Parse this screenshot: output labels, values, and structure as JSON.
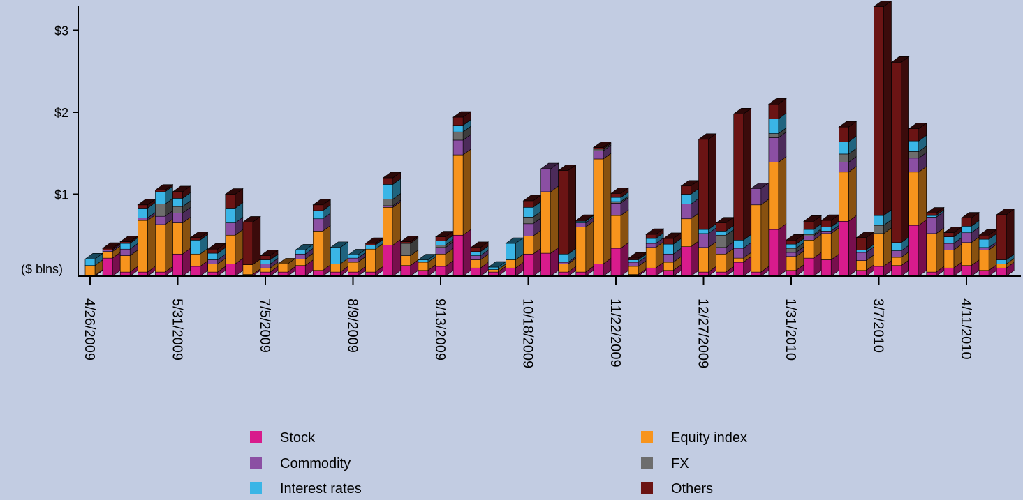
{
  "chart_data": {
    "type": "bar",
    "stacked": true,
    "three_d": true,
    "ylabel": "($ blns)",
    "ylim": [
      0,
      3.3
    ],
    "yticks": [
      {
        "value": 1,
        "label": "$1"
      },
      {
        "value": 2,
        "label": "$2"
      },
      {
        "value": 3,
        "label": "$3"
      }
    ],
    "xtick_labels": [
      {
        "index": 0,
        "label": "4/26/2009"
      },
      {
        "index": 5,
        "label": "5/31/2009"
      },
      {
        "index": 10,
        "label": "7/5/2009"
      },
      {
        "index": 15,
        "label": "8/9/2009"
      },
      {
        "index": 20,
        "label": "9/13/2009"
      },
      {
        "index": 25,
        "label": "10/18/2009"
      },
      {
        "index": 30,
        "label": "11/22/2009"
      },
      {
        "index": 35,
        "label": "12/27/2009"
      },
      {
        "index": 40,
        "label": "1/31/2010"
      },
      {
        "index": 45,
        "label": "3/7/2010"
      },
      {
        "index": 50,
        "label": "4/11/2010"
      }
    ],
    "grid": false,
    "legend_position": "bottom",
    "series": [
      {
        "name": "Stock",
        "color": "#d81b8c",
        "values": [
          0.01,
          0.22,
          0.05,
          0.05,
          0.05,
          0.27,
          0.12,
          0.05,
          0.15,
          0.02,
          0.05,
          0.05,
          0.13,
          0.07,
          0.05,
          0.05,
          0.05,
          0.38,
          0.13,
          0.07,
          0.12,
          0.5,
          0.1,
          0.05,
          0.1,
          0.27,
          0.28,
          0.05,
          0.05,
          0.15,
          0.34,
          0.02,
          0.1,
          0.07,
          0.36,
          0.05,
          0.05,
          0.17,
          0.05,
          0.57,
          0.07,
          0.22,
          0.2,
          0.67,
          0.07,
          0.12,
          0.13,
          0.62,
          0.05,
          0.1,
          0.13,
          0.07,
          0.1
        ]
      },
      {
        "name": "Equity index",
        "color": "#f7941d",
        "values": [
          0.12,
          0.08,
          0.2,
          0.63,
          0.58,
          0.38,
          0.15,
          0.1,
          0.35,
          0.12,
          0.05,
          0.1,
          0.08,
          0.48,
          0.1,
          0.12,
          0.28,
          0.46,
          0.12,
          0.1,
          0.15,
          0.98,
          0.1,
          0.03,
          0.1,
          0.22,
          0.75,
          0.1,
          0.55,
          1.28,
          0.4,
          0.1,
          0.25,
          0.1,
          0.34,
          0.3,
          0.22,
          0.05,
          0.82,
          0.82,
          0.17,
          0.22,
          0.32,
          0.6,
          0.12,
          0.4,
          0.1,
          0.65,
          0.47,
          0.22,
          0.28,
          0.25,
          0.05
        ]
      },
      {
        "name": "Commodity",
        "color": "#8b4fa3",
        "values": [
          0.0,
          0.02,
          0.08,
          0.03,
          0.1,
          0.12,
          0.0,
          0.05,
          0.15,
          0.0,
          0.05,
          0.0,
          0.06,
          0.15,
          0.0,
          0.05,
          0.0,
          0.02,
          0.0,
          0.0,
          0.08,
          0.18,
          0.05,
          0.0,
          0.0,
          0.15,
          0.28,
          0.02,
          0.05,
          0.1,
          0.15,
          0.05,
          0.05,
          0.1,
          0.18,
          0.17,
          0.08,
          0.12,
          0.2,
          0.3,
          0.05,
          0.05,
          0.03,
          0.12,
          0.1,
          0.0,
          0.08,
          0.17,
          0.2,
          0.08,
          0.12,
          0.03,
          0.0
        ]
      },
      {
        "name": "FX",
        "color": "#6d6d6d",
        "values": [
          0.0,
          0.0,
          0.0,
          0.0,
          0.15,
          0.08,
          0.0,
          0.0,
          0.0,
          0.0,
          0.0,
          0.0,
          0.0,
          0.0,
          0.0,
          0.0,
          0.0,
          0.08,
          0.15,
          0.0,
          0.03,
          0.1,
          0.0,
          0.0,
          0.0,
          0.08,
          0.0,
          0.0,
          0.0,
          0.02,
          0.02,
          0.0,
          0.0,
          0.0,
          0.0,
          0.0,
          0.15,
          0.0,
          0.0,
          0.05,
          0.05,
          0.02,
          0.0,
          0.1,
          0.0,
          0.1,
          0.0,
          0.08,
          0.0,
          0.0,
          0.0,
          0.0,
          0.0
        ]
      },
      {
        "name": "Interest rates",
        "color": "#3ab5e6",
        "values": [
          0.08,
          0.0,
          0.07,
          0.12,
          0.15,
          0.1,
          0.17,
          0.08,
          0.18,
          0.0,
          0.05,
          0.0,
          0.05,
          0.1,
          0.2,
          0.04,
          0.05,
          0.18,
          0.0,
          0.03,
          0.05,
          0.08,
          0.05,
          0.03,
          0.2,
          0.12,
          0.0,
          0.1,
          0.02,
          0.0,
          0.05,
          0.03,
          0.06,
          0.12,
          0.12,
          0.05,
          0.05,
          0.1,
          0.0,
          0.18,
          0.05,
          0.06,
          0.05,
          0.15,
          0.03,
          0.12,
          0.1,
          0.13,
          0.02,
          0.08,
          0.08,
          0.1,
          0.05
        ]
      },
      {
        "name": "Others",
        "color": "#6b1414",
        "values": [
          0.0,
          0.02,
          0.02,
          0.04,
          0.02,
          0.08,
          0.03,
          0.05,
          0.17,
          0.52,
          0.05,
          0.0,
          0.0,
          0.07,
          0.0,
          0.0,
          0.02,
          0.08,
          0.02,
          0.0,
          0.05,
          0.1,
          0.05,
          0.0,
          0.0,
          0.08,
          0.0,
          1.02,
          0.01,
          0.02,
          0.05,
          0.02,
          0.05,
          0.07,
          0.1,
          1.1,
          0.1,
          1.54,
          0.0,
          0.18,
          0.05,
          0.1,
          0.08,
          0.18,
          0.15,
          2.55,
          2.2,
          0.15,
          0.03,
          0.05,
          0.1,
          0.05,
          0.55
        ]
      }
    ]
  }
}
